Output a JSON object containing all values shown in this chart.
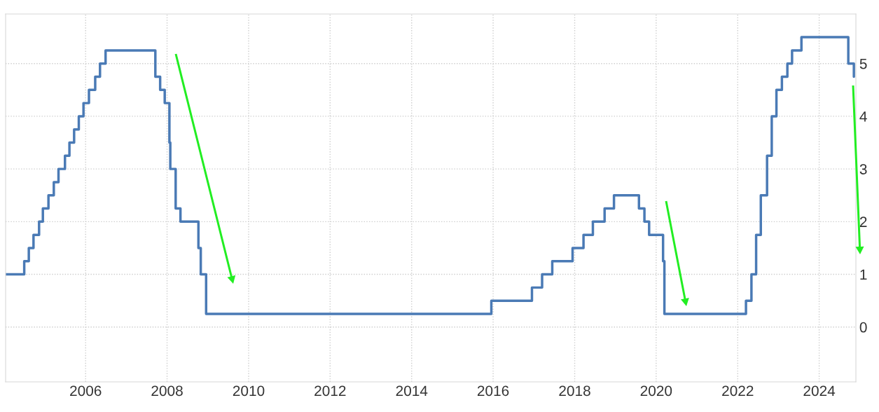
{
  "chart_data": {
    "type": "step",
    "x": [
      "2004-01-15",
      "2004-06-30",
      "2004-08-10",
      "2004-09-21",
      "2004-11-10",
      "2004-12-14",
      "2005-02-02",
      "2005-03-22",
      "2005-05-03",
      "2005-06-30",
      "2005-08-09",
      "2005-09-20",
      "2005-11-01",
      "2005-12-13",
      "2006-01-31",
      "2006-03-28",
      "2006-05-10",
      "2006-06-29",
      "2007-09-18",
      "2007-10-31",
      "2007-12-11",
      "2008-01-22",
      "2008-01-30",
      "2008-03-18",
      "2008-04-30",
      "2008-10-08",
      "2008-10-29",
      "2008-12-16",
      "2015-12-16",
      "2016-12-14",
      "2017-03-15",
      "2017-06-14",
      "2017-12-13",
      "2018-03-21",
      "2018-06-13",
      "2018-09-26",
      "2018-12-19",
      "2019-07-31",
      "2019-09-18",
      "2019-10-30",
      "2020-03-03",
      "2020-03-15",
      "2022-03-16",
      "2022-05-04",
      "2022-06-15",
      "2022-07-27",
      "2022-09-21",
      "2022-11-02",
      "2022-12-14",
      "2023-02-01",
      "2023-03-22",
      "2023-05-03",
      "2023-07-26",
      "2024-09-18",
      "2024-11-07"
    ],
    "series": [
      {
        "color": "#4a7ab5",
        "values": [
          1.0,
          1.25,
          1.5,
          1.75,
          2.0,
          2.25,
          2.5,
          2.75,
          3.0,
          3.25,
          3.5,
          3.75,
          4.0,
          4.25,
          4.5,
          4.75,
          5.0,
          5.25,
          4.75,
          4.5,
          4.25,
          3.5,
          3.0,
          2.25,
          2.0,
          1.5,
          1.0,
          0.25,
          0.5,
          0.75,
          1.0,
          1.25,
          1.5,
          1.75,
          2.0,
          2.25,
          2.5,
          2.25,
          2.0,
          1.75,
          1.25,
          0.25,
          0.5,
          1.0,
          1.75,
          2.5,
          3.25,
          4.0,
          4.5,
          4.75,
          5.0,
          5.25,
          5.5,
          5.0,
          4.75
        ]
      }
    ],
    "xlim": [
      "2004-01-15",
      "2024-11-25"
    ],
    "xticks": [
      "2006",
      "2008",
      "2010",
      "2012",
      "2014",
      "2016",
      "2018",
      "2020",
      "2022",
      "2024"
    ],
    "ylim": [
      -1.04,
      5.94
    ],
    "yticks": [
      0,
      1,
      2,
      3,
      4,
      5
    ],
    "grid": true,
    "legend": false,
    "marker": "none",
    "line_style": "solid"
  }
}
